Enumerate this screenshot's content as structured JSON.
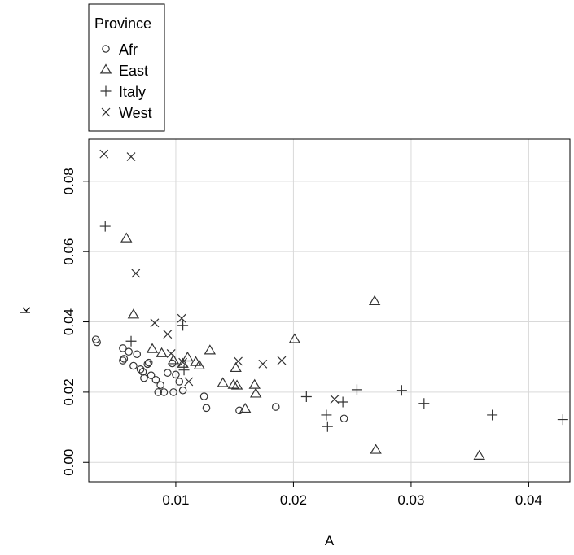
{
  "chart_data": {
    "type": "scatter",
    "title": "",
    "xlabel": "A",
    "ylabel": "k",
    "xlim": [
      0.0026,
      0.0435
    ],
    "ylim": [
      -0.0055,
      0.092
    ],
    "x_ticks": [
      0.01,
      0.02,
      0.03,
      0.04
    ],
    "x_tick_labels": [
      "0.01",
      "0.02",
      "0.03",
      "0.04"
    ],
    "y_ticks": [
      0.0,
      0.02,
      0.04,
      0.06,
      0.08
    ],
    "y_tick_labels": [
      "0.00",
      "0.02",
      "0.04",
      "0.06",
      "0.08"
    ],
    "grid": true,
    "grid_color": "#d9d9d9",
    "legend": {
      "title": "Province",
      "placement": "top-left, outside plot"
    },
    "series": [
      {
        "name": "Afr",
        "marker": "circle",
        "color": "#000000",
        "points": [
          [
            0.0032,
            0.035
          ],
          [
            0.0033,
            0.0342
          ],
          [
            0.0055,
            0.0325
          ],
          [
            0.0056,
            0.0295
          ],
          [
            0.0055,
            0.029
          ],
          [
            0.006,
            0.0315
          ],
          [
            0.0064,
            0.0275
          ],
          [
            0.0067,
            0.0308
          ],
          [
            0.007,
            0.0265
          ],
          [
            0.0072,
            0.0258
          ],
          [
            0.0073,
            0.024
          ],
          [
            0.0076,
            0.028
          ],
          [
            0.0077,
            0.0284
          ],
          [
            0.0079,
            0.0248
          ],
          [
            0.0083,
            0.0235
          ],
          [
            0.0085,
            0.02
          ],
          [
            0.0087,
            0.022
          ],
          [
            0.009,
            0.02
          ],
          [
            0.0093,
            0.0255
          ],
          [
            0.0097,
            0.0282
          ],
          [
            0.01,
            0.025
          ],
          [
            0.0103,
            0.023
          ],
          [
            0.0106,
            0.0205
          ],
          [
            0.0098,
            0.02
          ],
          [
            0.0124,
            0.0188
          ],
          [
            0.0126,
            0.0155
          ],
          [
            0.0154,
            0.0148
          ],
          [
            0.0185,
            0.0158
          ],
          [
            0.0243,
            0.0125
          ]
        ]
      },
      {
        "name": "East",
        "marker": "triangle",
        "color": "#000000",
        "points": [
          [
            0.0058,
            0.0637
          ],
          [
            0.0064,
            0.042
          ],
          [
            0.008,
            0.0322
          ],
          [
            0.0088,
            0.031
          ],
          [
            0.0098,
            0.029
          ],
          [
            0.0106,
            0.028
          ],
          [
            0.011,
            0.0298
          ],
          [
            0.0117,
            0.0285
          ],
          [
            0.012,
            0.0275
          ],
          [
            0.0129,
            0.0318
          ],
          [
            0.014,
            0.0225
          ],
          [
            0.0149,
            0.022
          ],
          [
            0.0151,
            0.0268
          ],
          [
            0.0152,
            0.0218
          ],
          [
            0.0159,
            0.0152
          ],
          [
            0.0167,
            0.022
          ],
          [
            0.0168,
            0.0195
          ],
          [
            0.0201,
            0.035
          ],
          [
            0.0269,
            0.0458
          ],
          [
            0.027,
            0.0035
          ],
          [
            0.0358,
            0.0018
          ]
        ]
      },
      {
        "name": "Italy",
        "marker": "plus",
        "color": "#000000",
        "points": [
          [
            0.004,
            0.0672
          ],
          [
            0.0062,
            0.0345
          ],
          [
            0.0106,
            0.039
          ],
          [
            0.0107,
            0.0263
          ],
          [
            0.0211,
            0.0187
          ],
          [
            0.0228,
            0.0135
          ],
          [
            0.0229,
            0.0102
          ],
          [
            0.0242,
            0.0172
          ],
          [
            0.0254,
            0.0207
          ],
          [
            0.0292,
            0.0205
          ],
          [
            0.0311,
            0.0168
          ],
          [
            0.0369,
            0.0135
          ],
          [
            0.0429,
            0.0122
          ]
        ]
      },
      {
        "name": "West",
        "marker": "x",
        "color": "#000000",
        "points": [
          [
            0.0039,
            0.0878
          ],
          [
            0.0062,
            0.087
          ],
          [
            0.0066,
            0.0538
          ],
          [
            0.0082,
            0.0397
          ],
          [
            0.0093,
            0.0365
          ],
          [
            0.0096,
            0.031
          ],
          [
            0.0105,
            0.041
          ],
          [
            0.0106,
            0.0285
          ],
          [
            0.0111,
            0.023
          ],
          [
            0.0153,
            0.0288
          ],
          [
            0.0174,
            0.028
          ],
          [
            0.019,
            0.029
          ],
          [
            0.0235,
            0.018
          ]
        ]
      }
    ]
  }
}
